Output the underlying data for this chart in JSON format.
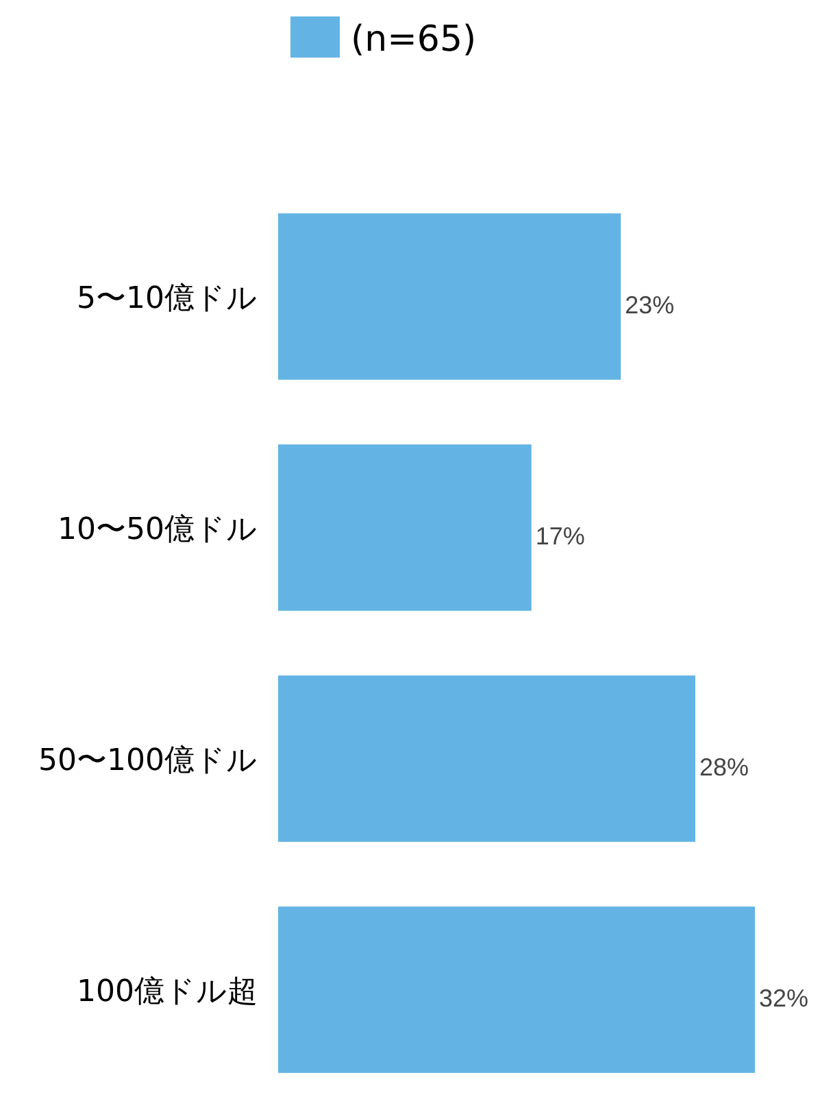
{
  "chart_data": {
    "type": "bar",
    "orientation": "horizontal",
    "categories": [
      "5〜10億ドル",
      "10〜50億ドル",
      "50〜100億ドル",
      "100億ドル超"
    ],
    "series": [
      {
        "name": "(n=65)",
        "color": "#63b4e4",
        "values": [
          23,
          17,
          28,
          32
        ],
        "value_labels": [
          "23%",
          "17%",
          "28%",
          "32%"
        ]
      }
    ],
    "legend": "top"
  }
}
